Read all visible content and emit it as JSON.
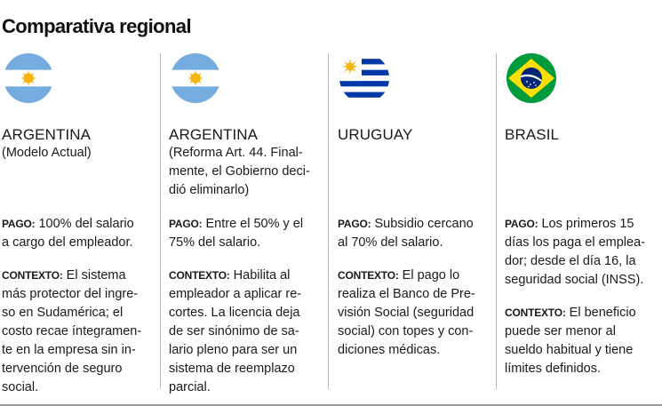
{
  "title": "Comparativa regional",
  "columns": [
    {
      "flag_icon": "argentina-flag-icon",
      "country": "ARGENTINA",
      "subtitle_lines": [
        "(Modelo Actual)"
      ],
      "pago_label": "PAGO:",
      "pago_lines": [
        " 100% del salario",
        "a cargo del empleador."
      ],
      "contexto_label": "CONTEXTO:",
      "contexto_lines": [
        " El sistema",
        "más protector del ingre-",
        "so en Sudamérica; el",
        "costo recae íntegramen-",
        "te en la empresa sin in-",
        "tervención de seguro",
        "social."
      ]
    },
    {
      "flag_icon": "argentina-flag-icon",
      "country": "ARGENTINA",
      "subtitle_lines": [
        "(Reforma Art. 44. Final-",
        "mente, el Gobierno deci-",
        "dió eliminarlo)"
      ],
      "pago_label": "PAGO:",
      "pago_lines": [
        " Entre el 50% y el",
        "75% del salario."
      ],
      "contexto_label": "CONTEXTO:",
      "contexto_lines": [
        " Habilita al",
        "empleador a aplicar re-",
        "cortes. La licencia deja",
        "de ser sinónimo de sa-",
        "lario pleno para ser un",
        "sistema de reemplazo",
        "parcial."
      ]
    },
    {
      "flag_icon": "uruguay-flag-icon",
      "country": "URUGUAY",
      "subtitle_lines": [],
      "pago_label": "PAGO:",
      "pago_lines": [
        " Subsidio cercano",
        "al 70% del salario."
      ],
      "contexto_label": "CONTEXTO:",
      "contexto_lines": [
        " El pago lo",
        "realiza el Banco de Pre-",
        "visión Social (seguridad",
        "social) con topes y con-",
        "diciones médicas."
      ]
    },
    {
      "flag_icon": "brazil-flag-icon",
      "country": "BRASIL",
      "subtitle_lines": [],
      "pago_label": "PAGO:",
      "pago_lines": [
        " Los primeros 15",
        "días los paga el emplea-",
        "dor; desde el día 16, la",
        "seguridad social (INSS)."
      ],
      "contexto_label": "CONTEXTO:",
      "contexto_lines": [
        " El beneficio",
        "puede ser menor al",
        "sueldo habitual y tiene",
        "límites definidos."
      ]
    }
  ],
  "colors": {
    "argentina_blue": "#74acdf",
    "sun_yellow": "#f6b40e",
    "uruguay_blue": "#0038a8",
    "brazil_green": "#009c3b",
    "brazil_yellow": "#ffdf00",
    "brazil_blue": "#002776"
  }
}
